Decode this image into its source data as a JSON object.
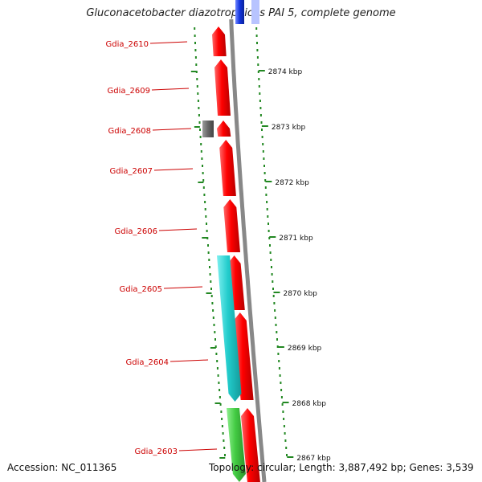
{
  "map": {
    "title": "Gluconacetobacter diazotrophicus PAI 5, complete genome",
    "accession": "Accession: NC_011365",
    "topology": "Topology: circular; Length: 3,887,492 bp; Genes: 3,539",
    "colors": {
      "label": "#cc0000",
      "gene_forward": "#ff0000",
      "gene_reverse_cyan": "#22cccc",
      "gene_reverse_green": "#44cc44",
      "pseudo_gray": "#666666",
      "backbone": "#888888",
      "tick": "#228822",
      "top_blue": "#1133dd"
    },
    "genes": [
      {
        "label": "Gdia_2610",
        "strand": "+"
      },
      {
        "label": "Gdia_2609",
        "strand": "+"
      },
      {
        "label": "Gdia_2608",
        "strand": "+"
      },
      {
        "label": "Gdia_2607",
        "strand": "+"
      },
      {
        "label": "Gdia_2606",
        "strand": "+"
      },
      {
        "label": "Gdia_2605",
        "strand": "+"
      },
      {
        "label": "Gdia_2604",
        "strand": "+"
      },
      {
        "label": "Gdia_2603",
        "strand": "+"
      }
    ],
    "scale_labels": [
      "2874 kbp",
      "2873 kbp",
      "2872 kbp",
      "2871 kbp",
      "2870 kbp",
      "2869 kbp",
      "2868 kbp",
      "2867 kbp"
    ]
  }
}
